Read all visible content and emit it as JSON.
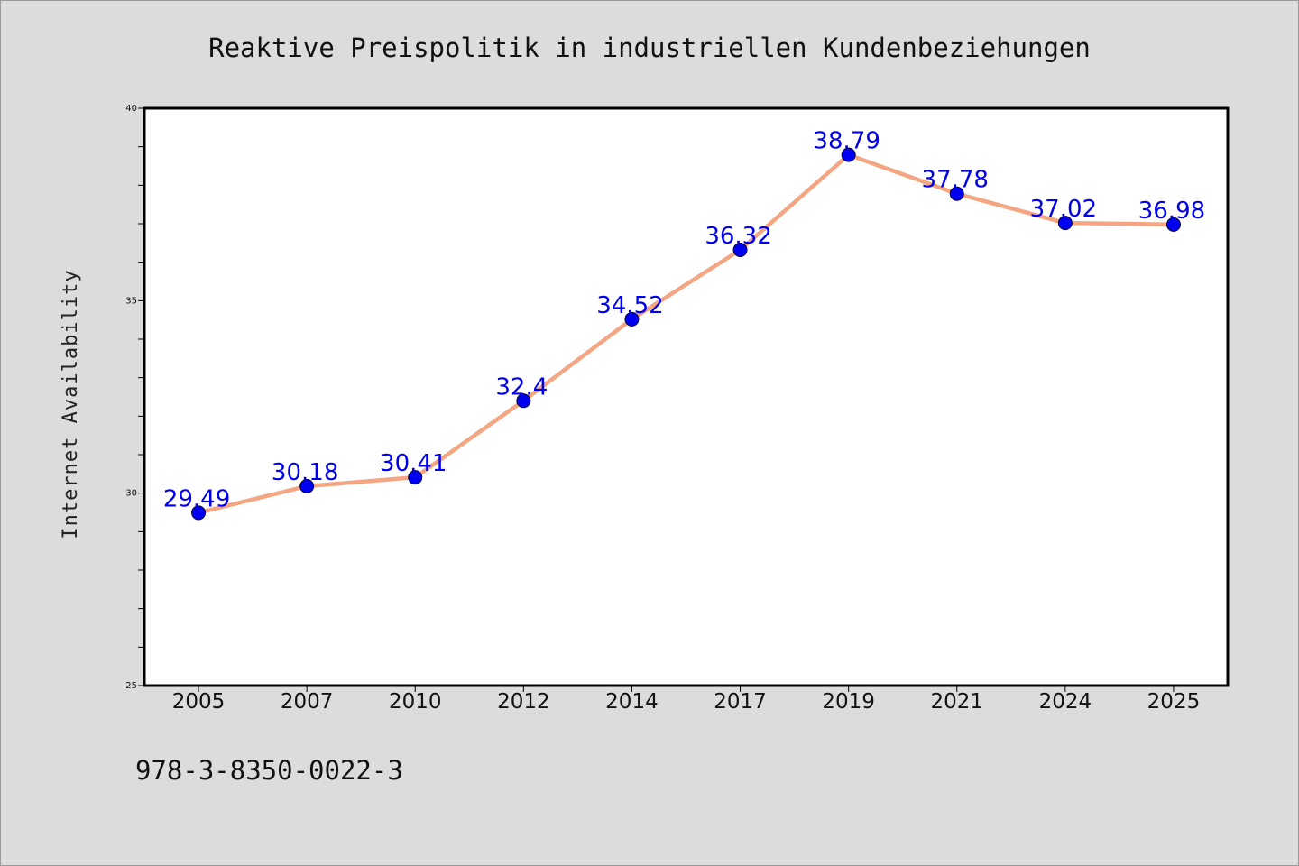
{
  "chart_data": {
    "type": "line",
    "title": "Reaktive Preispolitik in industriellen Kundenbeziehungen",
    "xlabel": "",
    "ylabel": "Internet Availability",
    "categories": [
      "2005",
      "2007",
      "2010",
      "2012",
      "2014",
      "2017",
      "2019",
      "2021",
      "2024",
      "2025"
    ],
    "values": [
      29.49,
      30.18,
      30.41,
      32.4,
      34.52,
      36.32,
      38.79,
      37.78,
      37.02,
      36.98
    ],
    "data_labels": [
      "29.49",
      "30.18",
      "30.41",
      "32.4",
      "34.52",
      "36.32",
      "38.79",
      "37.78",
      "37.02",
      "36.98"
    ],
    "ylim": [
      25,
      40
    ],
    "yticks": [
      "25",
      "30",
      "35",
      "40"
    ],
    "grid": false,
    "line_color": "#f4a582",
    "marker_color": "#0000ee",
    "label_color": "#0000ee",
    "background": "#dcdcdc",
    "plot_background": "#ffffff"
  },
  "footer": {
    "isbn": "978-3-8350-0022-3"
  }
}
